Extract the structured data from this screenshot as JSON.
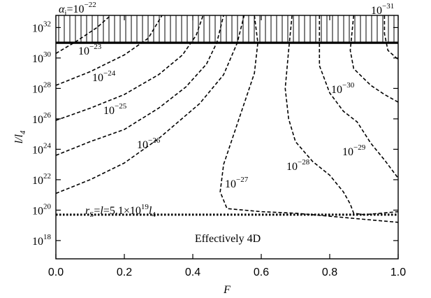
{
  "chart_data": {
    "type": "line",
    "xlabel": "F",
    "ylabel": "l/l4",
    "xlim": [
      0,
      1
    ],
    "ylim_log10": [
      16.8,
      32.8
    ],
    "x_ticks": [
      "0.0",
      "0.2",
      "0.4",
      "0.6",
      "0.8",
      "1.0"
    ],
    "y_ticks": [
      {
        "base": "10",
        "exp": "18"
      },
      {
        "base": "10",
        "exp": "20"
      },
      {
        "base": "10",
        "exp": "22"
      },
      {
        "base": "10",
        "exp": "24"
      },
      {
        "base": "10",
        "exp": "26"
      },
      {
        "base": "10",
        "exp": "28"
      },
      {
        "base": "10",
        "exp": "30"
      },
      {
        "base": "10",
        "exp": "32"
      }
    ],
    "upper_bound_log10": 31.0,
    "lower_bound_log10": 19.7,
    "lower_bound_label": {
      "lhs": "r",
      "lhs_sub": "S",
      "mid": "=",
      "l": "l",
      "value": "=5.1×10",
      "exp": "19",
      "unit": "l",
      "unit_sub": "4"
    },
    "region_label": "Effectively 4D",
    "alpha_prefix": "α",
    "alpha_sub": "i",
    "alpha_eq": "=",
    "contours": [
      {
        "label_base": "10",
        "label_exp": "−22",
        "points": [
          [
            0.0,
            30.3
          ],
          [
            0.06,
            31.1
          ],
          [
            0.12,
            32.0
          ],
          [
            0.16,
            32.8
          ]
        ]
      },
      {
        "label_base": "10",
        "label_exp": "−23",
        "points": [
          [
            0.0,
            28.2
          ],
          [
            0.1,
            29.1
          ],
          [
            0.2,
            30.2
          ],
          [
            0.27,
            31.3
          ],
          [
            0.31,
            32.8
          ]
        ]
      },
      {
        "label_base": "10",
        "label_exp": "−24",
        "points": [
          [
            0.0,
            25.9
          ],
          [
            0.1,
            26.7
          ],
          [
            0.2,
            27.6
          ],
          [
            0.3,
            28.9
          ],
          [
            0.37,
            30.2
          ],
          [
            0.41,
            31.5
          ],
          [
            0.43,
            32.8
          ]
        ]
      },
      {
        "label_base": "10",
        "label_exp": "−25",
        "points": [
          [
            0.0,
            23.6
          ],
          [
            0.1,
            24.5
          ],
          [
            0.2,
            25.3
          ],
          [
            0.3,
            26.7
          ],
          [
            0.38,
            28.1
          ],
          [
            0.44,
            29.6
          ],
          [
            0.47,
            31.0
          ],
          [
            0.49,
            32.8
          ]
        ]
      },
      {
        "label_base": "10",
        "label_exp": "−26",
        "points": [
          [
            0.0,
            21.1
          ],
          [
            0.1,
            22.0
          ],
          [
            0.2,
            23.1
          ],
          [
            0.3,
            24.7
          ],
          [
            0.42,
            27.0
          ],
          [
            0.49,
            28.9
          ],
          [
            0.53,
            31.0
          ],
          [
            0.55,
            32.8
          ]
        ]
      },
      {
        "label_base": "10",
        "label_exp": "−27",
        "points": [
          [
            0.58,
            32.8
          ],
          [
            0.59,
            31.0
          ],
          [
            0.58,
            29.0
          ],
          [
            0.55,
            27.0
          ],
          [
            0.52,
            25.0
          ],
          [
            0.49,
            23.0
          ],
          [
            0.48,
            21.2
          ],
          [
            0.5,
            20.1
          ],
          [
            0.6,
            19.9
          ],
          [
            0.7,
            19.8
          ],
          [
            0.8,
            19.6
          ],
          [
            0.9,
            19.4
          ],
          [
            1.0,
            19.2
          ]
        ]
      },
      {
        "label_base": "10",
        "label_exp": "−28",
        "points": [
          [
            0.69,
            32.8
          ],
          [
            0.68,
            30.5
          ],
          [
            0.67,
            28.0
          ],
          [
            0.68,
            26.0
          ],
          [
            0.7,
            24.5
          ],
          [
            0.75,
            23.2
          ],
          [
            0.8,
            22.3
          ],
          [
            0.84,
            21.2
          ],
          [
            0.86,
            20.4
          ],
          [
            0.87,
            19.8
          ],
          [
            0.9,
            19.7
          ],
          [
            0.95,
            19.8
          ],
          [
            1.0,
            19.9
          ]
        ]
      },
      {
        "label_base": "10",
        "label_exp": "−29",
        "points": [
          [
            0.77,
            32.8
          ],
          [
            0.77,
            31.0
          ],
          [
            0.77,
            29.5
          ],
          [
            0.8,
            27.7
          ],
          [
            0.84,
            26.5
          ],
          [
            0.88,
            25.8
          ],
          [
            0.92,
            24.4
          ],
          [
            0.96,
            23.3
          ],
          [
            1.0,
            22.1
          ]
        ]
      },
      {
        "label_base": "10",
        "label_exp": "−30",
        "points": [
          [
            0.87,
            32.8
          ],
          [
            0.86,
            30.5
          ],
          [
            0.87,
            29.3
          ],
          [
            0.92,
            28.2
          ],
          [
            0.96,
            27.6
          ],
          [
            1.0,
            27.1
          ]
        ]
      },
      {
        "label_base": "10",
        "label_exp": "−31",
        "points": [
          [
            0.96,
            32.8
          ],
          [
            0.96,
            31.6
          ],
          [
            0.97,
            30.5
          ],
          [
            1.0,
            29.9
          ]
        ]
      }
    ]
  }
}
